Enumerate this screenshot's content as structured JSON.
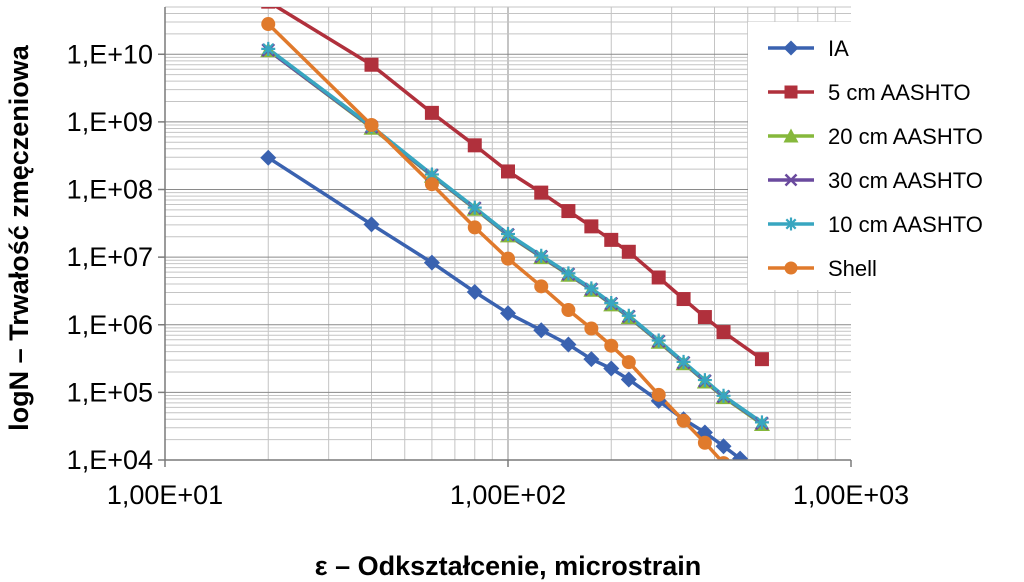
{
  "chart_data": {
    "type": "line",
    "xscale": "log",
    "yscale": "log",
    "xlim": [
      10,
      1000
    ],
    "ylim": [
      10000,
      50000000000
    ],
    "xlabel": "ε – Odkształcenie, microstrain",
    "ylabel": "logN – Trwałość zmęczeniowa",
    "xticks": [
      {
        "value": 10,
        "label": "1,00E+01"
      },
      {
        "value": 100,
        "label": "1,00E+02"
      },
      {
        "value": 1000,
        "label": "1,00E+03"
      }
    ],
    "yticks": [
      {
        "value": 10000,
        "label": "1,E+04"
      },
      {
        "value": 100000,
        "label": "1,E+05"
      },
      {
        "value": 1000000,
        "label": "1,E+06"
      },
      {
        "value": 10000000,
        "label": "1,E+07"
      },
      {
        "value": 100000000,
        "label": "1,E+08"
      },
      {
        "value": 1000000000,
        "label": "1,E+09"
      },
      {
        "value": 10000000000,
        "label": "1,E+10"
      }
    ],
    "grid": true,
    "legend_position": "right",
    "series": [
      {
        "name": "IA",
        "color": "#3a62b0",
        "marker": "diamond",
        "x": [
          20,
          40,
          60,
          80,
          100,
          125,
          150,
          175,
          200,
          225,
          275,
          325,
          375,
          425,
          475
        ],
        "y": [
          295000000,
          30500000,
          8300000,
          3050000,
          1480000,
          830000,
          510000,
          310000,
          225000,
          155000,
          75000,
          40000,
          25500,
          16000,
          10500
        ]
      },
      {
        "name": "5 cm AASHTO",
        "color": "#b0303c",
        "marker": "square",
        "x": [
          20,
          40,
          60,
          80,
          100,
          125,
          150,
          175,
          200,
          225,
          275,
          325,
          375,
          425,
          550
        ],
        "y": [
          60000000000,
          7000000000,
          1360000000,
          450000000,
          185000000,
          90000000,
          48000000,
          28500000,
          18000000,
          12000000,
          5000000,
          2400000,
          1300000,
          780000,
          310000
        ]
      },
      {
        "name": "20 cm AASHTO",
        "color": "#86b83c",
        "marker": "triangle",
        "x": [
          20,
          40,
          60,
          80,
          100,
          125,
          150,
          175,
          200,
          225,
          275,
          325,
          375,
          425,
          550
        ],
        "y": [
          11500000000,
          820000000,
          160000000,
          52000000,
          21000000,
          10000000,
          5500000,
          3300000,
          2000000,
          1300000,
          560000,
          270000,
          145000,
          85000,
          34000
        ]
      },
      {
        "name": "30 cm AASHTO",
        "color": "#6a4a9e",
        "marker": "x",
        "x": [
          20,
          40,
          60,
          80,
          100,
          125,
          150,
          175,
          200,
          225,
          275,
          325,
          375,
          425,
          550
        ],
        "y": [
          11500000000,
          840000000,
          163000000,
          53000000,
          21500000,
          10200000,
          5600000,
          3350000,
          2050000,
          1330000,
          570000,
          275000,
          148000,
          87000,
          35000
        ]
      },
      {
        "name": "10 cm AASHTO",
        "color": "#38a6c0",
        "marker": "asterisk",
        "x": [
          20,
          40,
          60,
          80,
          100,
          125,
          150,
          175,
          200,
          225,
          275,
          325,
          375,
          425,
          550
        ],
        "y": [
          12000000000,
          860000000,
          167000000,
          54000000,
          22000000,
          10500000,
          5750000,
          3450000,
          2100000,
          1360000,
          585000,
          282000,
          152000,
          89000,
          36000
        ]
      },
      {
        "name": "Shell",
        "color": "#e07a2c",
        "marker": "circle",
        "x": [
          20,
          40,
          60,
          80,
          100,
          125,
          150,
          175,
          200,
          225,
          275,
          325,
          375,
          425
        ],
        "y": [
          28000000000,
          900000000,
          120000000,
          27500000,
          9500000,
          3700000,
          1650000,
          880000,
          490000,
          280000,
          92000,
          38000,
          18000,
          9000
        ]
      }
    ]
  }
}
